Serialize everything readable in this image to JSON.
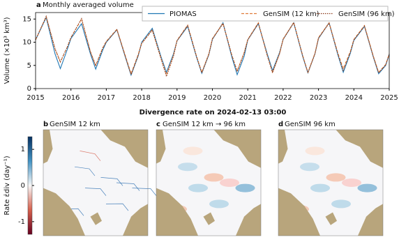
{
  "chart_data": [
    {
      "type": "line",
      "panel_label": "a",
      "title": "Monthly averaged volume",
      "ylabel": "Volume (×10³ km³)",
      "x": [
        2015.0,
        2015.3,
        2015.55,
        2015.7,
        2015.9,
        2016.0,
        2016.3,
        2016.55,
        2016.7,
        2016.9,
        2017.0,
        2017.3,
        2017.55,
        2017.7,
        2017.9,
        2018.0,
        2018.3,
        2018.55,
        2018.7,
        2018.9,
        2019.0,
        2019.3,
        2019.55,
        2019.7,
        2019.9,
        2020.0,
        2020.3,
        2020.55,
        2020.7,
        2020.9,
        2021.0,
        2021.3,
        2021.55,
        2021.7,
        2021.9,
        2022.0,
        2022.3,
        2022.55,
        2022.7,
        2022.9,
        2023.0,
        2023.3,
        2023.55,
        2023.7,
        2023.9,
        2024.0,
        2024.3,
        2024.55,
        2024.7,
        2024.9,
        2025.0
      ],
      "series": [
        {
          "name": "PIOMAS",
          "color": "#1f77b4",
          "linestyle": "solid",
          "values": [
            10.5,
            15.3,
            7.5,
            4.3,
            8.5,
            10.8,
            14.0,
            7.5,
            4.2,
            8.3,
            10.0,
            12.7,
            6.5,
            2.9,
            7.0,
            10.0,
            13.0,
            6.8,
            3.5,
            7.5,
            10.3,
            13.4,
            6.8,
            3.3,
            7.3,
            10.6,
            14.2,
            6.8,
            3.0,
            7.0,
            10.5,
            14.0,
            7.5,
            3.9,
            7.8,
            10.6,
            14.2,
            7.0,
            3.4,
            7.5,
            10.8,
            14.2,
            7.2,
            3.5,
            7.6,
            10.4,
            13.4,
            6.8,
            3.2,
            5.0,
            7.4
          ]
        },
        {
          "name": "GenSIM (12 km)",
          "color": "#e07b39",
          "linestyle": "dashed",
          "values": [
            10.5,
            15.5,
            8.5,
            5.7,
            9.0,
            11.0,
            15.0,
            8.0,
            5.0,
            8.8,
            10.2,
            12.8,
            6.8,
            3.2,
            7.3,
            9.8,
            12.7,
            6.5,
            3.0,
            7.2,
            10.4,
            13.7,
            7.0,
            3.5,
            7.5,
            10.8,
            14.1,
            7.2,
            3.8,
            7.8,
            10.6,
            14.2,
            7.2,
            3.5,
            7.6,
            10.7,
            14.3,
            7.2,
            3.5,
            7.6,
            11.0,
            14.2,
            7.6,
            4.3,
            8.0,
            10.6,
            13.6,
            7.0,
            3.5,
            5.2,
            7.5
          ]
        },
        {
          "name": "GenSIM (96 km)",
          "color": "#8b3a1a",
          "linestyle": "dotted",
          "values": [
            10.5,
            15.6,
            8.6,
            5.8,
            9.0,
            11.0,
            15.1,
            7.9,
            4.9,
            8.7,
            10.1,
            12.7,
            6.6,
            3.0,
            7.1,
            9.7,
            12.6,
            6.3,
            2.6,
            7.0,
            10.3,
            13.6,
            6.9,
            3.4,
            7.4,
            10.7,
            14.0,
            7.1,
            3.7,
            7.7,
            10.5,
            14.1,
            7.1,
            3.4,
            7.5,
            10.6,
            14.2,
            7.1,
            3.4,
            7.5,
            10.9,
            14.1,
            7.4,
            3.9,
            7.8,
            10.5,
            13.5,
            6.9,
            3.4,
            5.1,
            7.4
          ]
        }
      ],
      "xlim": [
        2015,
        2025
      ],
      "xticks": [
        2015,
        2016,
        2017,
        2018,
        2019,
        2020,
        2021,
        2022,
        2023,
        2024,
        2025
      ],
      "ylim": [
        0,
        16.4
      ],
      "yticks": [
        0,
        5,
        10,
        15
      ],
      "legend": "upper right"
    },
    {
      "type": "map",
      "title": "Divergence rate on 2024-02-13 03:00",
      "panels": [
        {
          "label": "b",
          "title": "GenSIM 12 km"
        },
        {
          "label": "c",
          "title": "GenSIM 12 km → 96 km"
        },
        {
          "label": "d",
          "title": "GenSIM 96 km"
        }
      ],
      "colorbar": {
        "label": "Rate ε̇div (day⁻¹)",
        "lim": [
          -1.35,
          1.35
        ],
        "ticks": [
          -1,
          0,
          1
        ],
        "colors": [
          "#67001f",
          "#d6604d",
          "#f7f7f7",
          "#4393c3",
          "#053061"
        ]
      },
      "land_color": "#b8a57c"
    }
  ]
}
